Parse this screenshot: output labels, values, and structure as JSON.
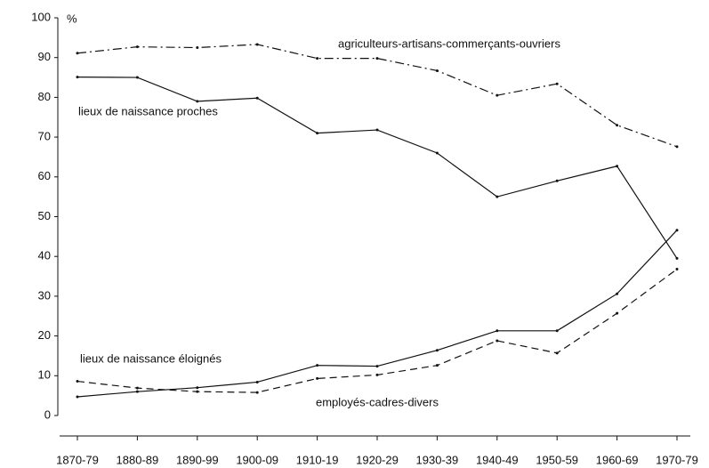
{
  "chart_data": {
    "type": "line",
    "y_unit": "%",
    "categories": [
      "1870-79",
      "1880-89",
      "1890-99",
      "1900-09",
      "1910-19",
      "1920-29",
      "1930-39",
      "1940-49",
      "1950-59",
      "1960-69",
      "1970-79"
    ],
    "series": [
      {
        "name": "agriculteurs-artisans-commerçants-ouvriers",
        "color": "#111111",
        "dash": "dashdot",
        "values": [
          91.1,
          92.7,
          92.5,
          93.3,
          89.8,
          89.8,
          86.7,
          80.5,
          83.4,
          73,
          67.6
        ]
      },
      {
        "name": "lieux de naissance proches",
        "color": "#111111",
        "dash": "solid",
        "values": [
          85.1,
          85,
          79,
          79.8,
          71,
          71.8,
          66,
          55,
          59,
          62.7,
          39.5
        ]
      },
      {
        "name": "lieux de naissance éloignés",
        "color": "#111111",
        "dash": "solid",
        "values": [
          4.7,
          6,
          7,
          8.4,
          12.6,
          12.4,
          16.4,
          21.3,
          21.3,
          30.6,
          46.6
        ]
      },
      {
        "name": "employés-cadres-divers",
        "color": "#111111",
        "dash": "dashed",
        "values": [
          8.6,
          6.9,
          6,
          5.8,
          9.3,
          10.2,
          12.6,
          18.8,
          15.7,
          25.7,
          36.8
        ]
      }
    ],
    "ylim": [
      0,
      100
    ],
    "yticks": [
      0,
      10,
      20,
      30,
      40,
      50,
      60,
      70,
      80,
      90,
      100
    ],
    "grid": false
  }
}
